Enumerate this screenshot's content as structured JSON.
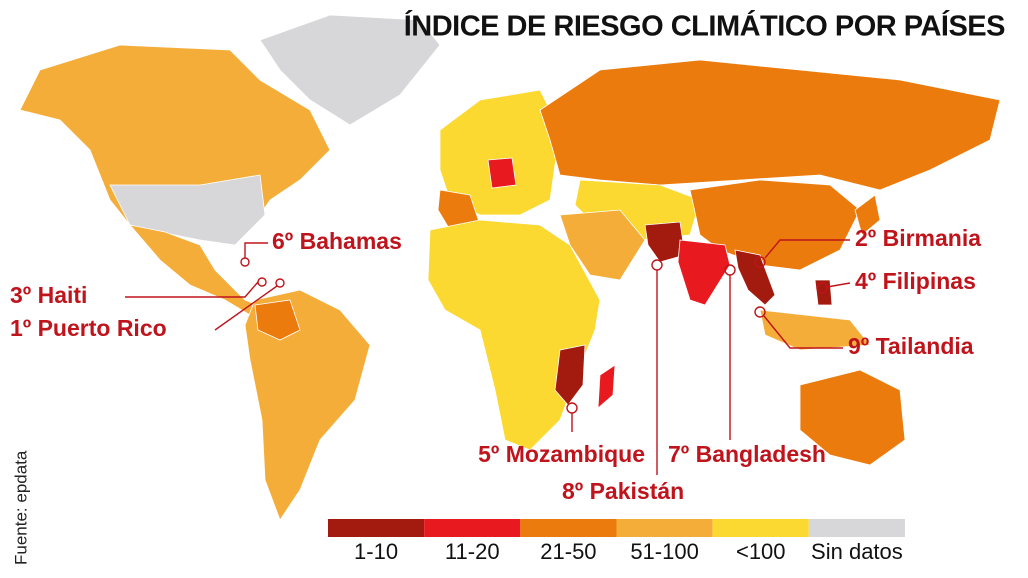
{
  "title": "ÍNDICE DE RIESGO CLIMÁTICO POR PAÍSES",
  "source": "Fuente: epdata",
  "annotations": [
    {
      "label": "6º Bahamas"
    },
    {
      "label": "3º Haiti"
    },
    {
      "label": "1º Puerto Rico"
    },
    {
      "label": "2º Birmania"
    },
    {
      "label": "4º Filipinas"
    },
    {
      "label": "9º Tailandia"
    },
    {
      "label": "5º Mozambique"
    },
    {
      "label": "7º Bangladesh"
    },
    {
      "label": "8º Pakistán"
    }
  ],
  "legend": [
    {
      "label": "1-10",
      "color": "#a31a0f"
    },
    {
      "label": "11-20",
      "color": "#e8191f"
    },
    {
      "label": "21-50",
      "color": "#ec7b0d"
    },
    {
      "label": "51-100",
      "color": "#f5ad3a"
    },
    {
      "label": "<100",
      "color": "#fbd930"
    },
    {
      "label": "Sin datos",
      "color": "#d7d7d9"
    }
  ]
}
